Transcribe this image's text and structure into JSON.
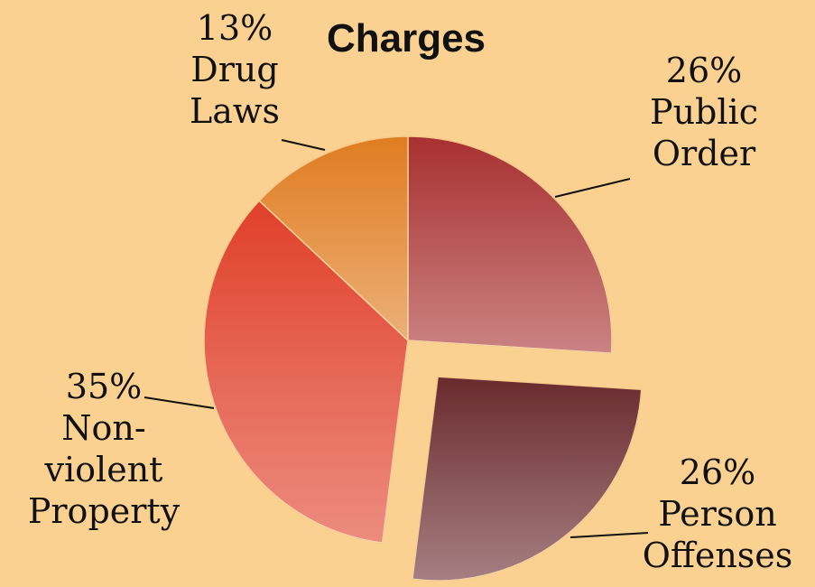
{
  "chart_data": {
    "type": "pie",
    "title": "Charges",
    "categories": [
      "Public Order",
      "Person Offenses",
      "Non-violent Property",
      "Drug Laws"
    ],
    "values": [
      26,
      26,
      35,
      13
    ],
    "value_labels": [
      "26%",
      "26%",
      "35%",
      "13%"
    ],
    "colors": [
      "#a83030",
      "#6a2a2e",
      "#e0402a",
      "#e07c20"
    ],
    "exploded": [
      false,
      true,
      false,
      false
    ]
  }
}
